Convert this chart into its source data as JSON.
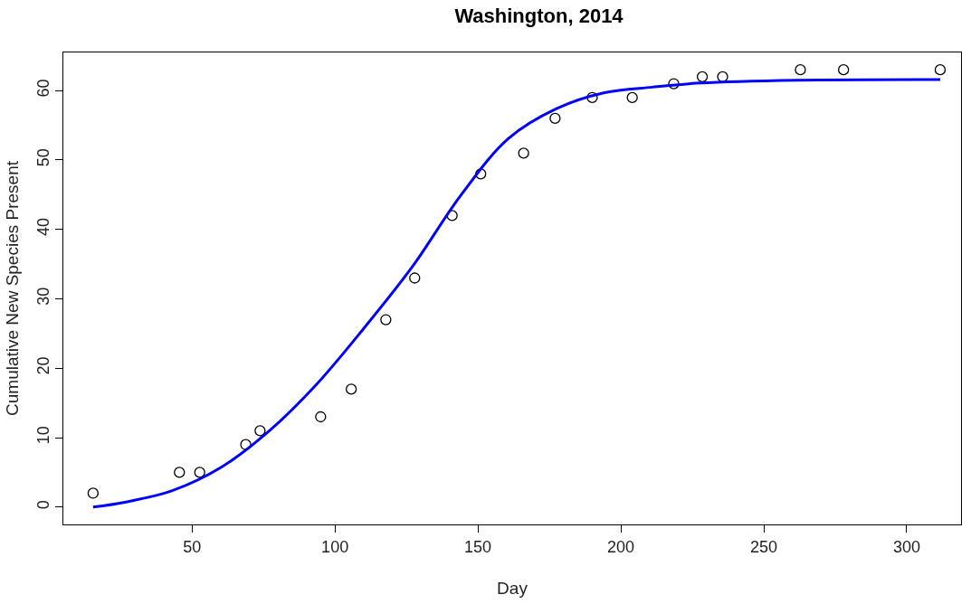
{
  "chart_data": {
    "type": "scatter",
    "title": "Washington, 2014",
    "xlabel": "Day",
    "ylabel": "Cumulative New Species Present",
    "xlim": [
      5,
      319
    ],
    "ylim": [
      -2.5,
      65.5
    ],
    "xticks": [
      50,
      100,
      150,
      200,
      250,
      300
    ],
    "yticks": [
      0,
      10,
      20,
      30,
      40,
      50,
      60
    ],
    "marker": "circle",
    "series": [
      {
        "color": "#000000",
        "x": [
          15.4,
          45.6,
          52.7,
          68.8,
          73.8,
          95,
          105.7,
          117.8,
          127.9,
          141,
          151,
          166,
          177,
          190,
          204,
          218.5,
          228.5,
          235.6,
          262.8,
          277.9,
          311.7
        ],
        "values": [
          2,
          5,
          5,
          9,
          11,
          13,
          17,
          27,
          33,
          42,
          48,
          51,
          56,
          59,
          59,
          61,
          62,
          62,
          63,
          63,
          63
        ]
      },
      {
        "type": "line",
        "color": "#0000ff",
        "marker": "none",
        "x": [
          15.4,
          26.5,
          43.3,
          60.1,
          76.8,
          93.6,
          110.4,
          127.2,
          144,
          160.7,
          177.5,
          194.3,
          211.1,
          227.9,
          261.4,
          311.7
        ],
        "values": [
          0,
          0.7,
          2.4,
          5.7,
          10.9,
          17.7,
          25.9,
          34.7,
          44.9,
          53.1,
          57.4,
          59.7,
          60.5,
          61.1,
          61.5,
          61.6
        ]
      }
    ]
  }
}
